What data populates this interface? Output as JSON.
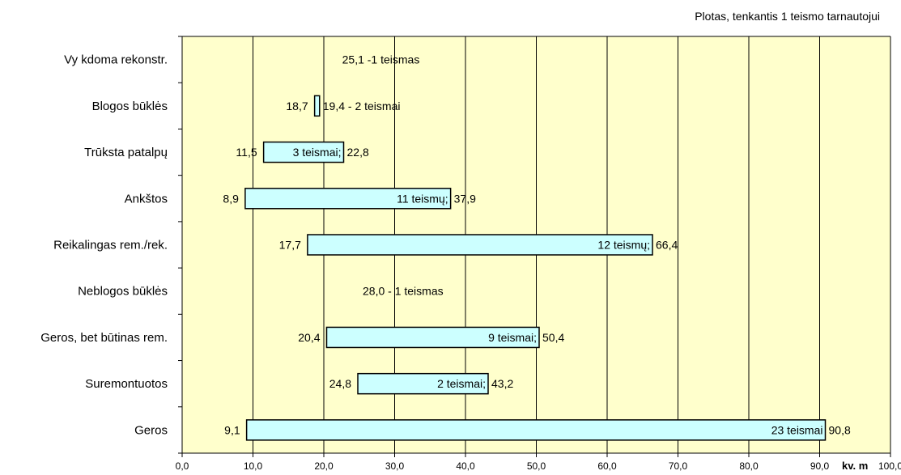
{
  "chart_data": {
    "type": "bar",
    "orientation": "horizontal-floating",
    "note_top": "Plotas, tenkantis 1 teismo tarnautojui",
    "xlabel": "kv. m",
    "xlim": [
      0,
      100
    ],
    "xticks": [
      "0,0",
      "10,0",
      "20,0",
      "30,0",
      "40,0",
      "50,0",
      "60,0",
      "70,0",
      "80,0",
      "90,0",
      "100,0"
    ],
    "grid": "vertical",
    "colors": {
      "plot_bg": "#ffffcc",
      "bar_fill": "#ccffff",
      "bar_stroke": "#000000",
      "grid": "#000000"
    },
    "categories": [
      {
        "name": "Vy kdoma rekonstr.",
        "start": 25.1,
        "end": 25.1,
        "start_label": "",
        "mid_label": "",
        "end_label": "25,1 -1 teismas"
      },
      {
        "name": "Blogos būklės",
        "start": 18.7,
        "end": 19.4,
        "start_label": "18,7",
        "mid_label": "",
        "end_label": "19,4 - 2 teismai"
      },
      {
        "name": "Trūksta patalpų",
        "start": 11.5,
        "end": 22.8,
        "start_label": "11,5",
        "mid_label": "3 teismai;",
        "end_label": "22,8"
      },
      {
        "name": "Ankštos",
        "start": 8.9,
        "end": 37.9,
        "start_label": "8,9",
        "mid_label": "11 teismų;",
        "end_label": "37,9"
      },
      {
        "name": "Reikalingas rem./rek.",
        "start": 17.7,
        "end": 66.4,
        "start_label": "17,7",
        "mid_label": "12 teismų;",
        "end_label": "66,4"
      },
      {
        "name": "Neblogos būklės",
        "start": 28.0,
        "end": 28.0,
        "start_label": "",
        "mid_label": "",
        "end_label": "28,0 - 1 teismas"
      },
      {
        "name": "Geros, bet būtinas rem.",
        "start": 20.4,
        "end": 50.4,
        "start_label": "20,4",
        "mid_label": "9 teismai;",
        "end_label": "50,4"
      },
      {
        "name": "Suremontuotos",
        "start": 24.8,
        "end": 43.2,
        "start_label": "24,8",
        "mid_label": "2 teismai;",
        "end_label": "43,2"
      },
      {
        "name": "Geros",
        "start": 9.1,
        "end": 90.8,
        "start_label": "9,1",
        "mid_label": "23 teismai",
        "end_label": "90,8"
      }
    ]
  }
}
